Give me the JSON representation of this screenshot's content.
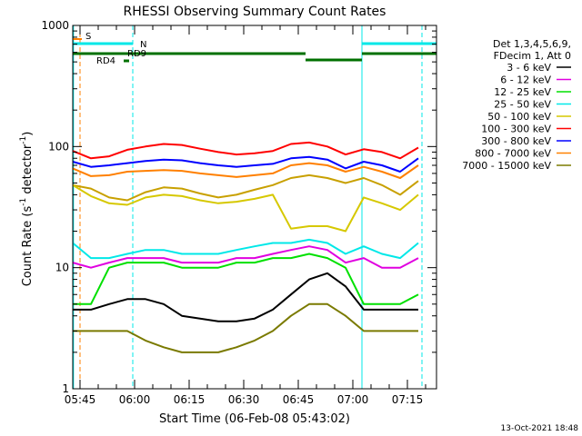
{
  "chart_data": {
    "type": "line",
    "title": "RHESSI Observing Summary Count Rates",
    "xlabel": "Start Time (06-Feb-08 05:43:02)",
    "ylabel": "Count Rate (s⁻¹ detector⁻¹)",
    "ylabel_main": "Count Rate (s",
    "ylabel_sup1": "-1",
    "ylabel_mid": " detector",
    "ylabel_sup2": "-1",
    "ylabel_end": ")",
    "yscale": "log",
    "ylim": [
      1,
      1000
    ],
    "xlim": [
      "05:43:02",
      "07:23:00"
    ],
    "x_tick_labels": [
      "05:45",
      "06:00",
      "06:15",
      "06:30",
      "06:45",
      "07:00",
      "07:15"
    ],
    "y_tick_labels": [
      "1",
      "10",
      "100",
      "1000"
    ],
    "footer_date": "13-Oct-2021 18:48",
    "legend": {
      "header": [
        "Det 1,3,4,5,6,9,",
        "FDecim 1, Att 0"
      ],
      "entries": [
        {
          "label": "3 - 6 keV",
          "color": "#000000"
        },
        {
          "label": "6 - 12 keV",
          "color": "#e000e0"
        },
        {
          "label": "12 - 25 keV",
          "color": "#00e000"
        },
        {
          "label": "25 - 50 keV",
          "color": "#00e8e8"
        },
        {
          "label": "50 - 100 keV",
          "color": "#d6c800"
        },
        {
          "label": "100 - 300 keV",
          "color": "#ff0000"
        },
        {
          "label": "300 - 800 keV",
          "color": "#0000ff"
        },
        {
          "label": "800 - 7000 keV",
          "color": "#ff8000"
        },
        {
          "label": "7000 - 15000 keV",
          "color": "#7a7a00"
        }
      ]
    },
    "flags": [
      {
        "label": "S",
        "color": "#ff8000"
      },
      {
        "label": "N",
        "color": "#00e8e8"
      },
      {
        "label": "RD9",
        "color": "#007000"
      },
      {
        "label": "RD4",
        "color": "#007000"
      }
    ],
    "x_times_min": [
      0,
      5,
      10,
      15,
      20,
      25,
      30,
      35,
      40,
      45,
      50,
      55,
      60,
      65,
      70,
      75,
      80,
      85,
      90,
      95
    ],
    "series": [
      {
        "name": "100 - 300 keV",
        "color": "#ff0000",
        "values": [
          92,
          80,
          83,
          94,
          100,
          105,
          103,
          96,
          90,
          86,
          88,
          92,
          105,
          108,
          100,
          86,
          95,
          90,
          80,
          98
        ]
      },
      {
        "name": "300 - 800 keV",
        "color": "#0000ff",
        "values": [
          75,
          68,
          70,
          73,
          76,
          78,
          77,
          73,
          70,
          68,
          70,
          72,
          80,
          82,
          78,
          66,
          75,
          70,
          62,
          80
        ]
      },
      {
        "name": "800 - 7000 keV",
        "color": "#ff8000",
        "values": [
          66,
          57,
          58,
          62,
          63,
          64,
          63,
          60,
          58,
          56,
          58,
          60,
          70,
          73,
          70,
          62,
          68,
          62,
          55,
          70
        ]
      },
      {
        "name": "7000 - 15000 keV (upper)",
        "color": "#c8a000",
        "values": [
          48,
          45,
          38,
          36,
          42,
          46,
          45,
          41,
          38,
          40,
          44,
          48,
          55,
          58,
          55,
          50,
          55,
          48,
          40,
          52
        ]
      },
      {
        "name": "50 - 100 keV",
        "color": "#d6c800",
        "values": [
          48,
          39,
          34,
          33,
          38,
          40,
          39,
          36,
          34,
          35,
          37,
          40,
          21,
          22,
          22,
          20,
          38,
          34,
          30,
          40
        ]
      },
      {
        "name": "25 - 50 keV",
        "color": "#00e8e8",
        "values": [
          16,
          12,
          12,
          13,
          14,
          14,
          13,
          13,
          13,
          14,
          15,
          16,
          16,
          17,
          16,
          13,
          15,
          13,
          12,
          16
        ]
      },
      {
        "name": "6 - 12 keV",
        "color": "#e000e0",
        "values": [
          11,
          10,
          11,
          12,
          12,
          12,
          11,
          11,
          11,
          12,
          12,
          13,
          14,
          15,
          14,
          11,
          12,
          10,
          10,
          12
        ]
      },
      {
        "name": "12 - 25 keV",
        "color": "#00e000",
        "values": [
          5,
          5,
          10,
          11,
          11,
          11,
          10,
          10,
          10,
          11,
          11,
          12,
          12,
          13,
          12,
          10,
          5,
          5,
          5,
          6
        ]
      },
      {
        "name": "3 - 6 keV",
        "color": "#000000",
        "values": [
          4.5,
          4.5,
          5,
          5.5,
          5.5,
          5,
          4,
          3.8,
          3.6,
          3.6,
          3.8,
          4.5,
          6,
          8,
          9,
          7,
          4.5,
          4.5,
          4.5,
          4.5
        ]
      },
      {
        "name": "7000 - 15000 keV",
        "color": "#7a7a00",
        "values": [
          3,
          3,
          3,
          3,
          2.5,
          2.2,
          2,
          2,
          2,
          2.2,
          2.5,
          3,
          4,
          5,
          5,
          4,
          3,
          3,
          3,
          3
        ]
      }
    ]
  }
}
